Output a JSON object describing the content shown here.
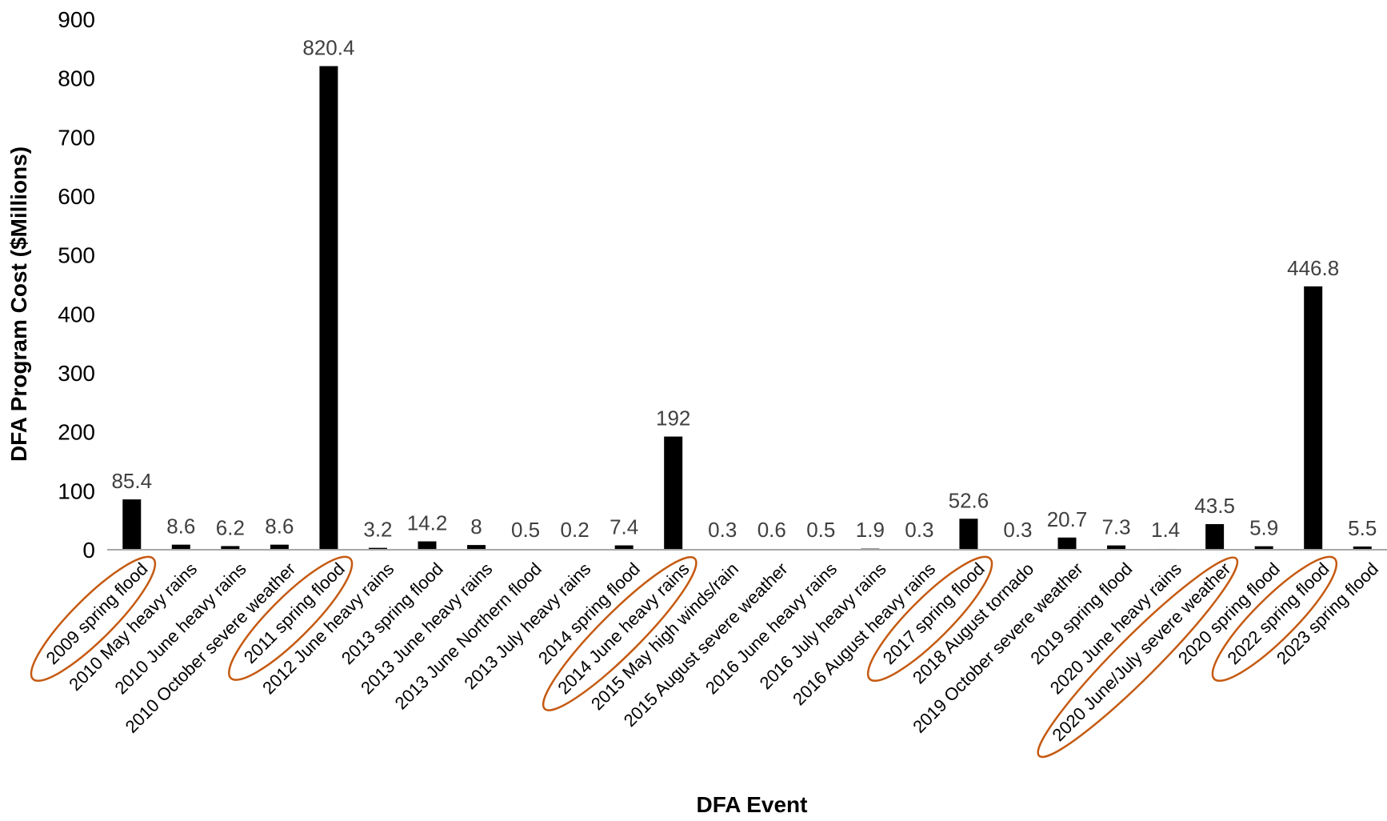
{
  "colors": {
    "bar": "#000000",
    "highlight": "#C55A11",
    "axis": "#A6A6A6",
    "data_label": "#404040"
  },
  "chart_data": {
    "type": "bar",
    "title": "",
    "xlabel": "DFA Event",
    "ylabel": "DFA Program Cost ($Millions)",
    "ylim": [
      0,
      900
    ],
    "yticks": [
      0,
      100,
      200,
      300,
      400,
      500,
      600,
      700,
      800,
      900
    ],
    "grid": false,
    "categories": [
      "2009 spring flood",
      "2010 May heavy rains",
      "2010 June heavy rains",
      "2010 October severe weather",
      "2011 spring flood",
      "2012 June heavy rains",
      "2013 spring flood",
      "2013 June heavy rains",
      "2013 June Northern flood",
      "2013 July heavy rains",
      "2014 spring flood",
      "2014 June heavy rains",
      "2015 May high winds/rain",
      "2015 August severe weather",
      "2016 June heavy rains",
      "2016 July heavy rains",
      "2016 August heavy rains",
      "2017 spring flood",
      "2018 August tornado",
      "2019 October severe weather",
      "2019 spring flood",
      "2020 June heavy rains",
      "2020 June/July severe weather",
      "2020 spring flood",
      "2022 spring flood",
      "2023 spring flood"
    ],
    "values": [
      85.4,
      8.6,
      6.2,
      8.6,
      820.4,
      3.2,
      14.2,
      8,
      0.5,
      0.2,
      7.4,
      192,
      0.3,
      0.6,
      0.5,
      1.9,
      0.3,
      52.6,
      0.3,
      20.7,
      7.3,
      1.4,
      43.5,
      5.9,
      446.8,
      5.5
    ],
    "value_labels": [
      "85.4",
      "8.6",
      "6.2",
      "8.6",
      "820.4",
      "3.2",
      "14.2",
      "8",
      "0.5",
      "0.2",
      "7.4",
      "192",
      "0.3",
      "0.6",
      "0.5",
      "1.9",
      "0.3",
      "52.6",
      "0.3",
      "20.7",
      "7.3",
      "1.4",
      "43.5",
      "5.9",
      "446.8",
      "5.5"
    ],
    "highlighted_categories": [
      "2009 spring flood",
      "2011 spring flood",
      "2014 June heavy rains",
      "2017 spring flood",
      "2020 June/July severe weather",
      "2022 spring flood"
    ]
  }
}
